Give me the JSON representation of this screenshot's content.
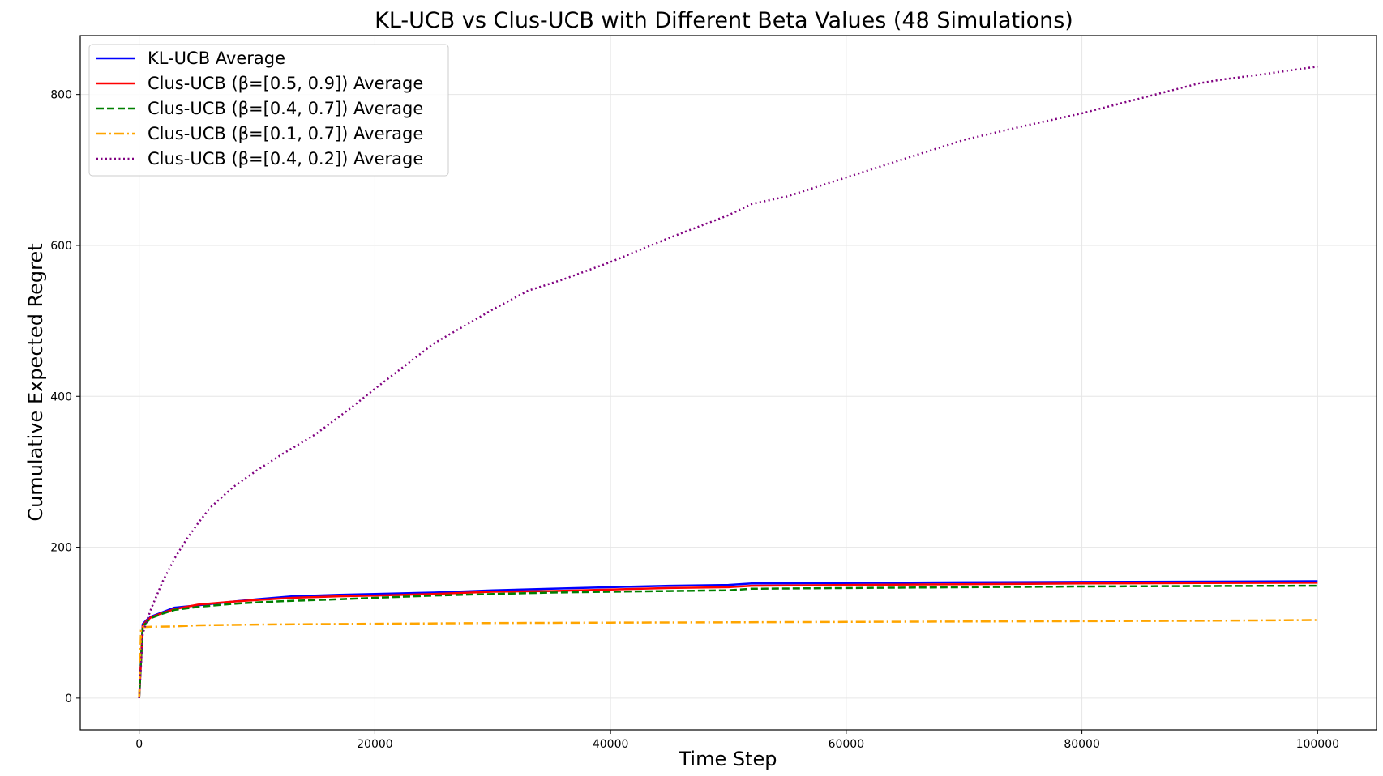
{
  "chart_data": {
    "type": "line",
    "title": "KL-UCB vs Clus-UCB with Different Beta Values (48 Simulations)",
    "xlabel": "Time Step",
    "ylabel": "Cumulative Expected Regret",
    "xlim": [
      -5000,
      105000
    ],
    "ylim": [
      -42,
      878
    ],
    "xticks": [
      0,
      20000,
      40000,
      60000,
      80000,
      100000
    ],
    "yticks": [
      0,
      200,
      400,
      600,
      800
    ],
    "grid": true,
    "legend_position": "top-left",
    "series": [
      {
        "name": "KL-UCB Average",
        "color": "#0000ff",
        "style": "solid",
        "x": [
          0,
          300,
          600,
          1000,
          2000,
          3000,
          5000,
          8000,
          10000,
          13000,
          17000,
          20000,
          25000,
          30000,
          35000,
          40000,
          45000,
          50000,
          52000,
          60000,
          70000,
          80000,
          90000,
          100000
        ],
        "y": [
          0,
          98,
          103,
          108,
          114,
          120,
          123,
          128,
          131,
          135,
          137,
          138,
          140,
          143,
          145,
          147,
          149,
          150,
          152,
          152.5,
          153.5,
          154,
          154.5,
          155
        ]
      },
      {
        "name": "Clus-UCB (β=[0.5, 0.9]) Average",
        "color": "#ff0000",
        "style": "solid",
        "x": [
          0,
          300,
          600,
          1000,
          2000,
          3000,
          5000,
          8000,
          10000,
          13000,
          17000,
          20000,
          25000,
          30000,
          35000,
          40000,
          45000,
          50000,
          52000,
          60000,
          70000,
          80000,
          90000,
          100000
        ],
        "y": [
          0,
          96,
          102,
          107,
          113,
          118,
          124,
          128,
          130,
          133,
          135,
          136,
          138,
          141,
          142,
          144,
          146,
          147,
          149,
          150,
          151,
          152,
          152.5,
          153
        ]
      },
      {
        "name": "Clus-UCB (β=[0.4, 0.7]) Average",
        "color": "#008000",
        "style": "dashed",
        "x": [
          0,
          300,
          600,
          1000,
          2000,
          3000,
          5000,
          8000,
          10000,
          13000,
          17000,
          20000,
          25000,
          30000,
          35000,
          40000,
          45000,
          50000,
          52000,
          60000,
          70000,
          80000,
          90000,
          100000
        ],
        "y": [
          0,
          94,
          100,
          106,
          112,
          117,
          121,
          125,
          127,
          129,
          131,
          133,
          136,
          138,
          140,
          141,
          142,
          143,
          145,
          146,
          147,
          148,
          148.5,
          149
        ]
      },
      {
        "name": "Clus-UCB (β=[0.1, 0.7]) Average",
        "color": "#ffa500",
        "style": "dashdot",
        "x": [
          0,
          150,
          300,
          1000,
          3000,
          5000,
          10000,
          20000,
          30000,
          40000,
          50000,
          60000,
          70000,
          80000,
          90000,
          100000
        ],
        "y": [
          0,
          90,
          94,
          94.5,
          95,
          96.5,
          97.5,
          98.5,
          99.5,
          100,
          100.5,
          101,
          101.5,
          102,
          102.5,
          103.5
        ]
      },
      {
        "name": "Clus-UCB (β=[0.4, 0.2]) Average",
        "color": "#800080",
        "style": "dotted",
        "x": [
          0,
          300,
          600,
          1000,
          2000,
          3000,
          4000,
          5000,
          6000,
          8000,
          10000,
          12000,
          15000,
          18000,
          20000,
          25000,
          30000,
          33000,
          36000,
          40000,
          45000,
          50000,
          52000,
          55000,
          60000,
          65000,
          70000,
          75000,
          80000,
          85000,
          90000,
          92000,
          95000,
          100000
        ],
        "y": [
          0,
          85,
          100,
          118,
          155,
          185,
          210,
          232,
          252,
          280,
          302,
          322,
          350,
          385,
          410,
          470,
          515,
          540,
          555,
          578,
          610,
          640,
          655,
          665,
          690,
          715,
          740,
          758,
          775,
          795,
          815,
          820,
          826,
          837
        ]
      }
    ]
  }
}
